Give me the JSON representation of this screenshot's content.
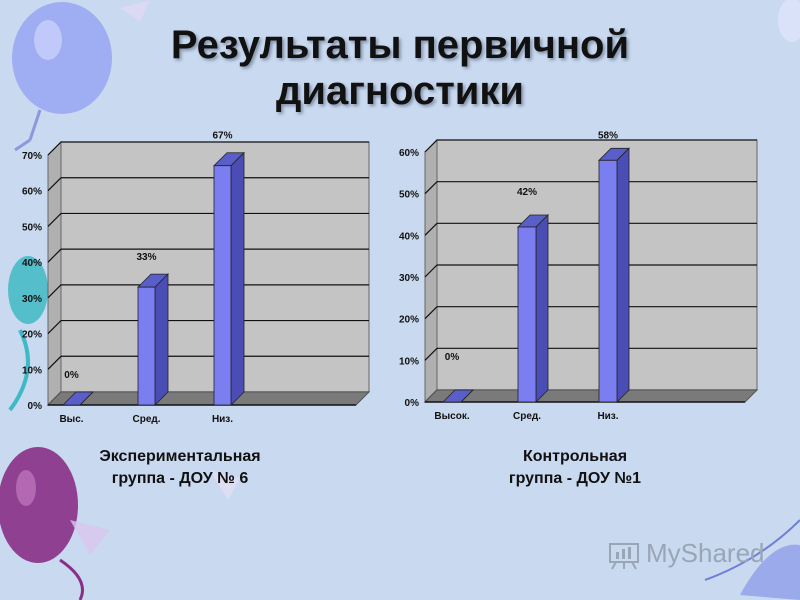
{
  "slide": {
    "title_line1": "Результаты первичной",
    "title_line2": "диагностики",
    "watermark": "MyShared"
  },
  "colors": {
    "background": "#c9d9ef",
    "bar_front": "#7b7ef0",
    "bar_side": "#4a4eb4",
    "bar_top": "#5a5ec8",
    "plot_wall": "#c4c4c4",
    "plot_floor": "#7a7a7a",
    "gridline": "#111111"
  },
  "chart_data": [
    {
      "type": "bar",
      "categories": [
        "Выс.",
        "Сред.",
        "Низ."
      ],
      "values": [
        0,
        33,
        67
      ],
      "data_labels": [
        "0%",
        "33%",
        "67%"
      ],
      "ylim": [
        0,
        70
      ],
      "yticks": [
        "0%",
        "10%",
        "20%",
        "30%",
        "40%",
        "50%",
        "60%",
        "70%"
      ],
      "caption_line1": "Экспериментальная",
      "caption_line2": "группа - ДОУ № 6",
      "grid": true
    },
    {
      "type": "bar",
      "categories": [
        "Высок.",
        "Сред.",
        "Низ."
      ],
      "values": [
        0,
        42,
        58
      ],
      "data_labels": [
        "0%",
        "42%",
        "58%"
      ],
      "ylim": [
        0,
        60
      ],
      "yticks": [
        "0%",
        "10%",
        "20%",
        "30%",
        "40%",
        "50%",
        "60%"
      ],
      "caption_line1": "Контрольная",
      "caption_line2": "группа - ДОУ №1",
      "grid": true
    }
  ]
}
